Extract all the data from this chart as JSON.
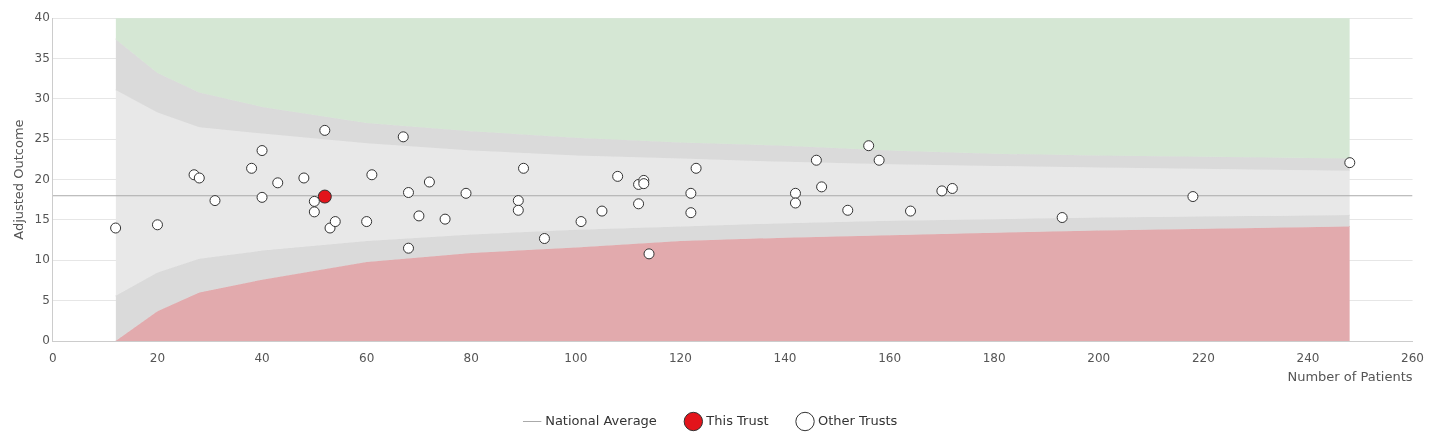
{
  "chart_data": {
    "type": "scatter",
    "xlabel": "Number of Patients",
    "ylabel": "Adjusted Outcome",
    "xlim": [
      0,
      260
    ],
    "xticks": [
      0,
      20,
      40,
      60,
      80,
      100,
      120,
      140,
      160,
      180,
      200,
      220,
      240,
      260
    ],
    "ylim": [
      0,
      40
    ],
    "yticks": [
      0,
      5,
      10,
      15,
      20,
      25,
      30,
      35,
      40
    ],
    "grid": "y",
    "legend": "bottom",
    "stacked": true,
    "series": [
      {
        "name": "Other Trusts",
        "marker": "circle",
        "color": "#ffffff",
        "x": [
          12,
          20,
          27,
          28,
          31,
          38,
          40,
          40,
          43,
          48,
          50,
          50,
          52,
          53,
          54,
          60,
          61,
          67,
          68,
          68,
          70,
          72,
          75,
          79,
          89,
          89,
          90,
          94,
          101,
          105,
          108,
          112,
          113,
          113,
          112,
          114,
          122,
          122,
          123,
          142,
          142,
          146,
          147,
          152,
          156,
          158,
          164,
          170,
          172,
          193,
          218,
          248
        ],
        "values": [
          14.0,
          14.4,
          20.6,
          20.2,
          17.4,
          21.4,
          17.8,
          23.6,
          19.6,
          20.2,
          17.3,
          16.0,
          26.1,
          14.0,
          14.8,
          14.8,
          20.6,
          25.3,
          18.4,
          11.5,
          15.5,
          19.7,
          15.1,
          18.3,
          17.4,
          16.2,
          21.4,
          12.7,
          14.8,
          16.1,
          20.4,
          19.4,
          19.9,
          19.5,
          17.0,
          10.8,
          18.3,
          15.9,
          21.4,
          18.3,
          17.1,
          22.4,
          19.1,
          16.2,
          24.2,
          22.4,
          16.1,
          18.6,
          18.9,
          15.3,
          17.9,
          22.1
        ]
      },
      {
        "name": "This Trust",
        "marker": "circle",
        "color": "#e3141b",
        "x": [
          52
        ],
        "values": [
          17.9
        ]
      },
      {
        "name": "National Average",
        "type": "line",
        "color": "#aaaaaa",
        "x": [
          0,
          260
        ],
        "values": [
          18,
          18
        ]
      },
      {
        "type": "area",
        "color": "#e2aaad",
        "x": [
          12,
          20,
          28,
          40,
          60,
          80,
          100,
          120,
          140,
          160,
          180,
          200,
          248
        ],
        "values": [
          0,
          3.7,
          6.0,
          7.6,
          9.8,
          10.9,
          11.6,
          12.4,
          12.8,
          13.1,
          13.4,
          13.7,
          14.2
        ]
      },
      {
        "type": "area",
        "color": "#dadada",
        "x": [
          12,
          20,
          28,
          40,
          60,
          80,
          100,
          120,
          140,
          160,
          180,
          200,
          248
        ],
        "values": [
          5.6,
          4.8,
          4.2,
          3.6,
          2.6,
          2.3,
          2.2,
          1.8,
          1.8,
          1.8,
          1.7,
          1.6,
          1.4
        ]
      },
      {
        "type": "area",
        "color": "#e8e8e8",
        "x": [
          12,
          20,
          28,
          40,
          60,
          80,
          100,
          120,
          140,
          160,
          180,
          200,
          248
        ],
        "values": [
          25.5,
          19.8,
          16.3,
          14.5,
          12.1,
          10.4,
          9.2,
          8.4,
          7.6,
          7.0,
          6.6,
          6.2,
          5.5
        ]
      },
      {
        "type": "area",
        "color": "#dadada",
        "x": [
          12,
          20,
          28,
          40,
          60,
          80,
          100,
          120,
          140,
          160,
          180,
          200,
          248
        ],
        "values": [
          6.3,
          4.9,
          4.3,
          3.3,
          2.5,
          2.4,
          2.2,
          2.0,
          2.0,
          1.7,
          1.5,
          1.5,
          1.5
        ]
      },
      {
        "type": "area",
        "color": "#d5e7d4",
        "x": [
          12,
          20,
          28,
          40,
          60,
          80,
          100,
          120,
          140,
          160,
          180,
          200,
          248
        ],
        "values": [
          2.6,
          6.8,
          9.2,
          11.0,
          13.0,
          14.0,
          14.8,
          15.4,
          15.8,
          16.4,
          16.8,
          17.0,
          17.4
        ]
      }
    ]
  }
}
